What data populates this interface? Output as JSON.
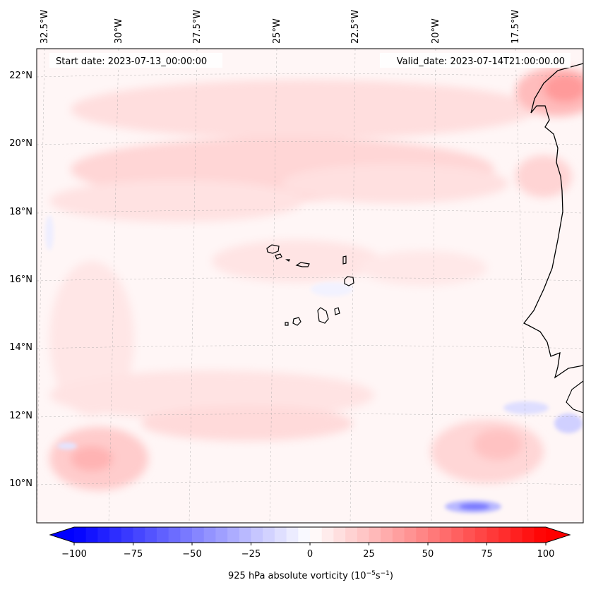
{
  "map": {
    "start_date": "Start date: 2023-07-13_00:00:00",
    "valid_date": "Valid_date: 2023-07-14T21:00:00.00",
    "lon_labels": [
      "32.5°W",
      "30°W",
      "27.5°W",
      "25°W",
      "22.5°W",
      "20°W",
      "17.5°W"
    ],
    "lat_labels": [
      "22°N",
      "20°N",
      "18°N",
      "16°N",
      "14°N",
      "12°N",
      "10°N"
    ],
    "gridlines": true
  },
  "colorbar": {
    "ticks": [
      "−100",
      "−75",
      "−50",
      "−25",
      "0",
      "25",
      "50",
      "75",
      "100"
    ],
    "label_main": "925 hPa absolute vorticity (10",
    "label_exp1": "−5",
    "label_mid": "s",
    "label_exp2": "−1",
    "label_end": ")",
    "min": -100,
    "max": 100,
    "step": 5,
    "negative_color": "#0000ff",
    "positive_color": "#ff0000",
    "extend": "both"
  },
  "colors": {
    "background_tint": "#fff5f5",
    "coastline": "#000000"
  }
}
